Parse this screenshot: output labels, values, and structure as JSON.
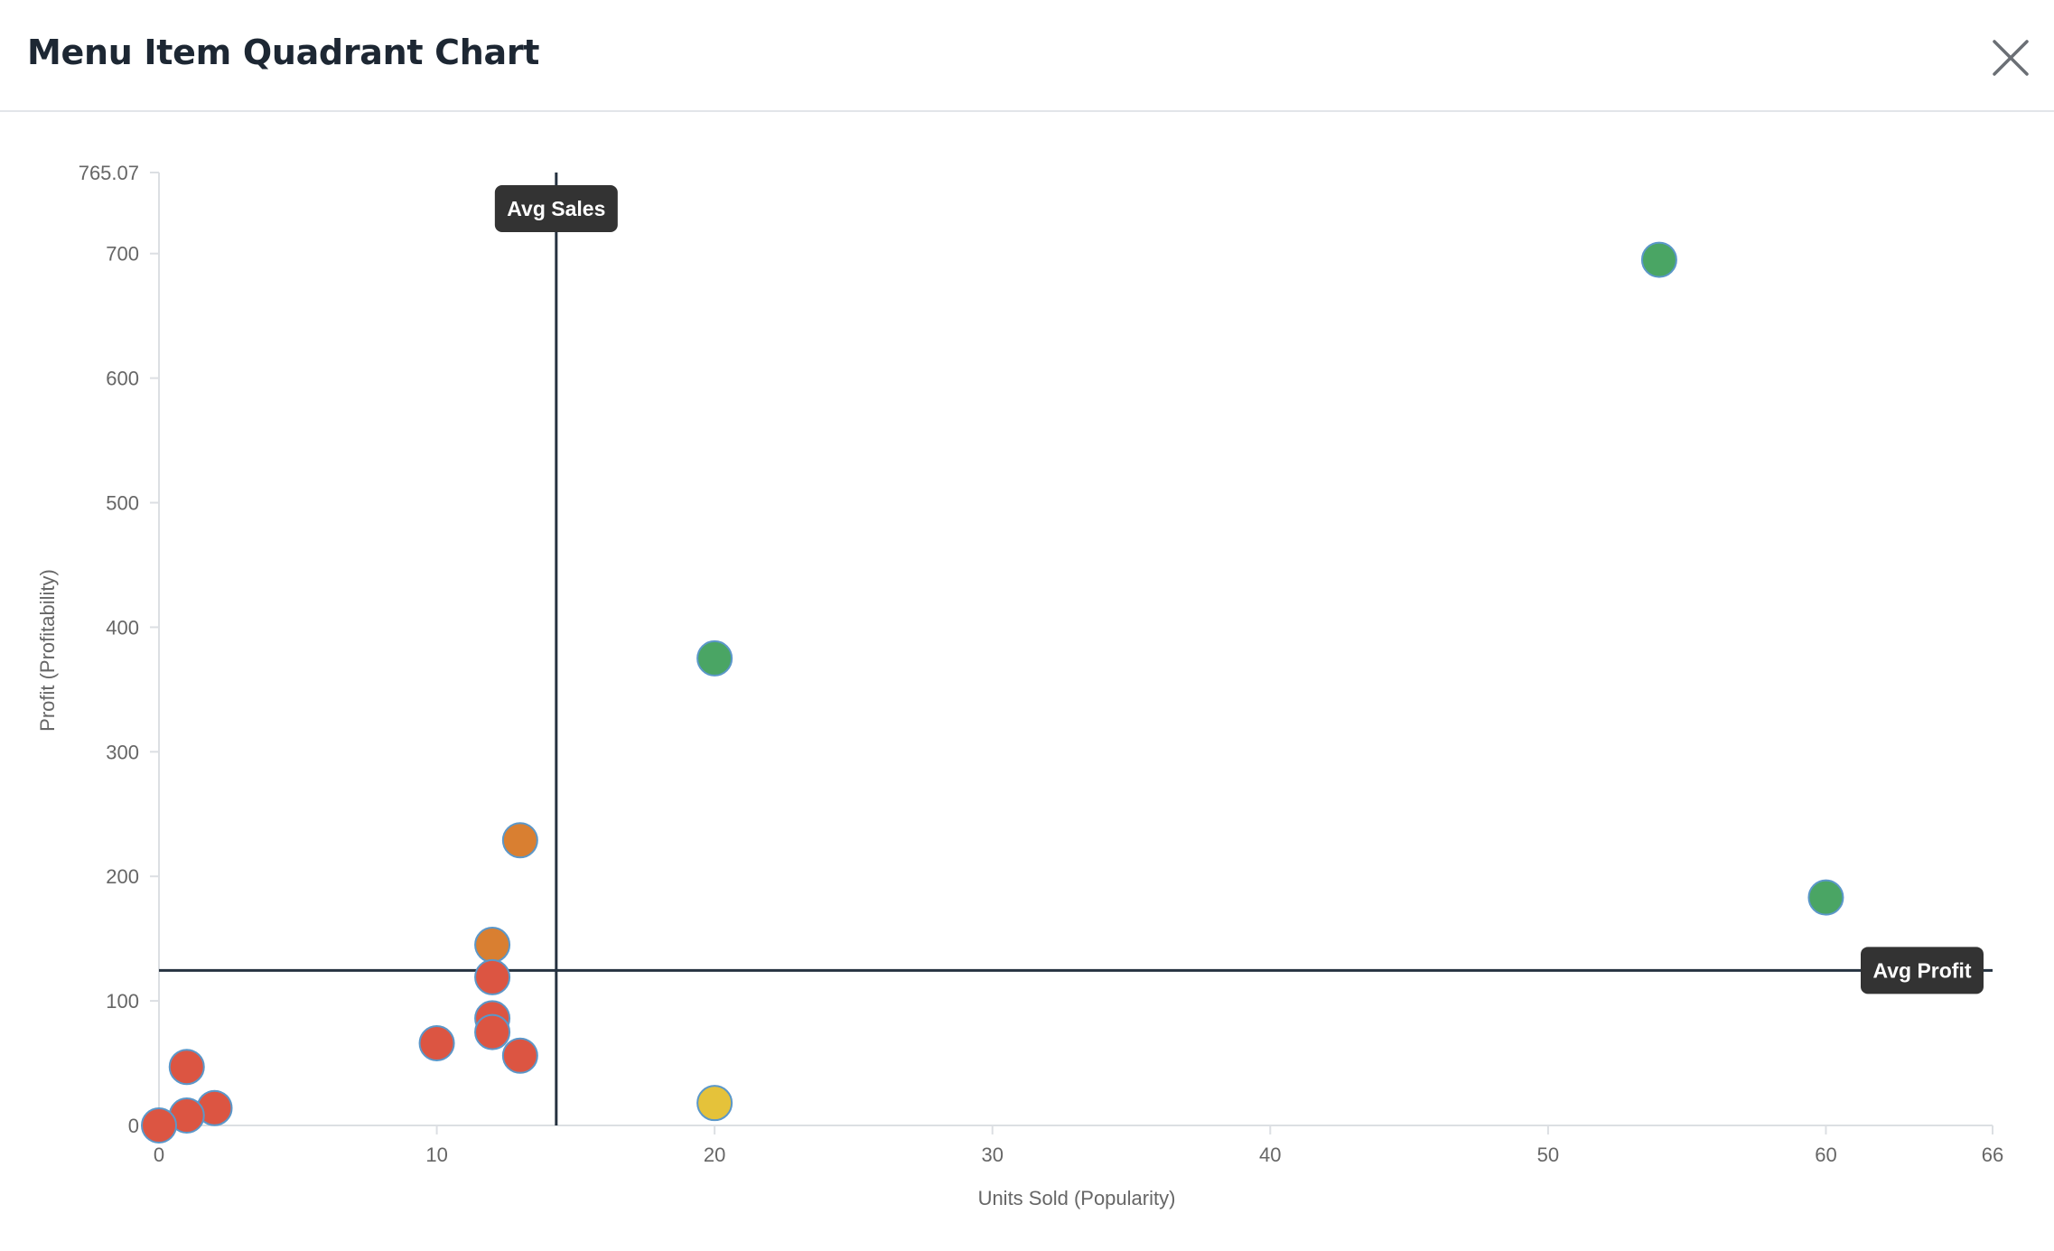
{
  "dialog": {
    "title": "Menu Item Quadrant Chart",
    "close_icon": "close-icon"
  },
  "colors": {
    "star": "#4aa564",
    "plowhorse": "#e5c23a",
    "puzzle": "#d97f31",
    "dog": "#dc5542",
    "marker_stroke": "#5b97c9",
    "reference_line": "#263240",
    "label_bg": "#333333"
  },
  "chart_data": {
    "type": "scatter",
    "title": "",
    "xlabel": "Units Sold (Popularity)",
    "ylabel": "Profit (Profitability)",
    "xlim": [
      0,
      66
    ],
    "ylim": [
      0,
      765.07
    ],
    "x_ticks": [
      0,
      10,
      20,
      30,
      40,
      50,
      60,
      66
    ],
    "y_ticks": [
      0,
      100,
      200,
      300,
      400,
      500,
      600,
      700,
      765.07
    ],
    "x_tick_labels": [
      "0",
      "10",
      "20",
      "30",
      "40",
      "50",
      "60",
      "66"
    ],
    "y_tick_labels": [
      "0",
      "100",
      "200",
      "300",
      "400",
      "500",
      "600",
      "700",
      "765.07"
    ],
    "grid": false,
    "reference_lines": {
      "avg_sales": {
        "label": "Avg Sales",
        "x": 14.3
      },
      "avg_profit": {
        "label": "Avg Profit",
        "y": 124.5
      }
    },
    "points": [
      {
        "x": 54,
        "y": 695,
        "color": "star"
      },
      {
        "x": 20,
        "y": 375,
        "color": "star"
      },
      {
        "x": 60,
        "y": 183,
        "color": "star"
      },
      {
        "x": 20,
        "y": 18,
        "color": "plowhorse"
      },
      {
        "x": 13,
        "y": 229,
        "color": "puzzle"
      },
      {
        "x": 12,
        "y": 145,
        "color": "puzzle"
      },
      {
        "x": 12,
        "y": 119,
        "color": "dog"
      },
      {
        "x": 12,
        "y": 86,
        "color": "dog"
      },
      {
        "x": 12,
        "y": 75,
        "color": "dog"
      },
      {
        "x": 10,
        "y": 66,
        "color": "dog"
      },
      {
        "x": 13,
        "y": 56,
        "color": "dog"
      },
      {
        "x": 1,
        "y": 47,
        "color": "dog"
      },
      {
        "x": 2,
        "y": 14,
        "color": "dog"
      },
      {
        "x": 1,
        "y": 8,
        "color": "dog"
      },
      {
        "x": 0,
        "y": 0,
        "color": "dog"
      }
    ]
  }
}
